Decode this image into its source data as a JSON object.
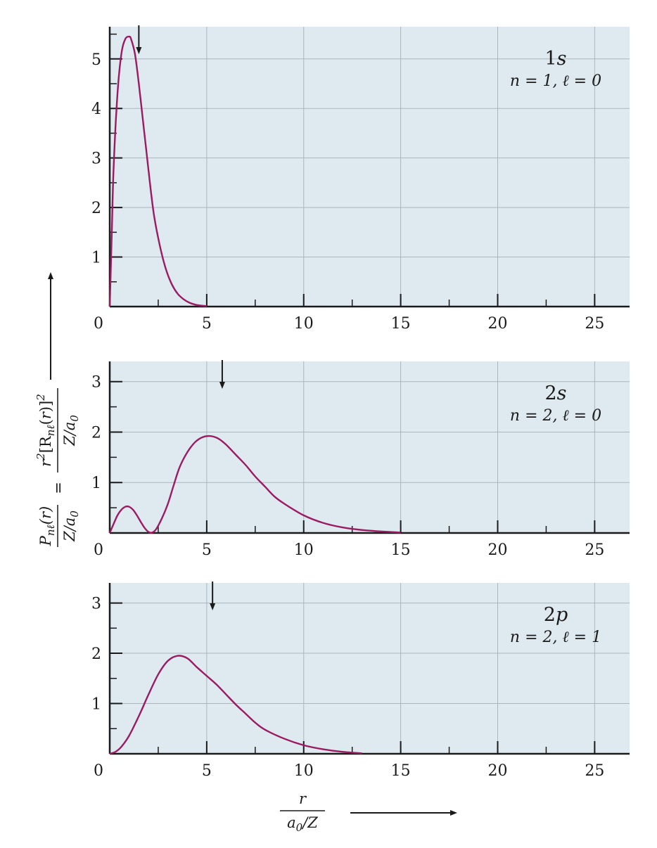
{
  "colors": {
    "plot_background": "#dfeaf0",
    "grid": "#aab6bc",
    "curve": "#9b1b63",
    "axis": "#1a1a1a"
  },
  "y_axis_label": {
    "lhs_numerator": "P_nℓ(r)",
    "lhs_denominator": "Z/a_0",
    "equals": "=",
    "rhs_numerator": "r²[R_nℓ(r)]²",
    "rhs_denominator": "Z/a_0"
  },
  "x_axis_label": {
    "numerator": "r",
    "denominator": "a_0/Z"
  },
  "chart_data": [
    {
      "type": "line",
      "orbital": "1s",
      "quantum_numbers": "n = 1, ℓ = 0",
      "xlim": [
        0,
        26.8
      ],
      "ylim": [
        0,
        5.65
      ],
      "x_ticks": [
        0,
        5,
        10,
        15,
        20,
        25
      ],
      "x_tick_labels": [
        "0",
        "5",
        "10",
        "15",
        "20",
        "25"
      ],
      "y_ticks": [
        1,
        2,
        3,
        4,
        5
      ],
      "y_tick_labels": [
        "1",
        "2",
        "3",
        "4",
        "5"
      ],
      "grid": true,
      "arrow_at_x": 1.5,
      "x": [
        0,
        0.1,
        0.2,
        0.4,
        0.6,
        0.8,
        1.0,
        1.1,
        1.3,
        1.5,
        1.7,
        1.9,
        2.1,
        2.3,
        2.6,
        2.9,
        3.2,
        3.5,
        3.8,
        4.1,
        4.4,
        4.7,
        5.0
      ],
      "y": [
        0,
        1.4,
        2.8,
        4.3,
        5.1,
        5.4,
        5.45,
        5.4,
        5.1,
        4.5,
        3.8,
        3.1,
        2.4,
        1.8,
        1.2,
        0.75,
        0.45,
        0.26,
        0.15,
        0.08,
        0.04,
        0.02,
        0.01
      ]
    },
    {
      "type": "line",
      "orbital": "2s",
      "quantum_numbers": "n = 2, ℓ = 0",
      "xlim": [
        0,
        26.8
      ],
      "ylim": [
        0,
        3.4
      ],
      "x_ticks": [
        0,
        5,
        10,
        15,
        20,
        25
      ],
      "x_tick_labels": [
        "0",
        "5",
        "10",
        "15",
        "20",
        "25"
      ],
      "y_ticks": [
        1,
        2,
        3
      ],
      "y_tick_labels": [
        "1",
        "2",
        "3"
      ],
      "grid": true,
      "arrow_at_x": 5.8,
      "x": [
        0,
        0.2,
        0.4,
        0.6,
        0.8,
        1.0,
        1.2,
        1.4,
        1.6,
        1.8,
        2.0,
        2.2,
        2.4,
        2.7,
        3.0,
        3.3,
        3.6,
        4.0,
        4.4,
        4.8,
        5.2,
        5.6,
        6.0,
        6.5,
        7.0,
        7.5,
        8.0,
        8.5,
        9.0,
        10.0,
        11.0,
        12.0,
        13.0,
        14.0,
        15.0
      ],
      "y": [
        0,
        0.18,
        0.35,
        0.46,
        0.52,
        0.52,
        0.46,
        0.35,
        0.22,
        0.1,
        0.02,
        0.01,
        0.08,
        0.3,
        0.58,
        0.95,
        1.3,
        1.6,
        1.8,
        1.9,
        1.92,
        1.87,
        1.75,
        1.55,
        1.35,
        1.12,
        0.92,
        0.72,
        0.58,
        0.35,
        0.2,
        0.11,
        0.06,
        0.03,
        0.01
      ]
    },
    {
      "type": "line",
      "orbital": "2p",
      "quantum_numbers": "n = 2, ℓ = 1",
      "xlim": [
        0,
        26.8
      ],
      "ylim": [
        0,
        3.4
      ],
      "x_ticks": [
        0,
        5,
        10,
        15,
        20,
        25
      ],
      "x_tick_labels": [
        "0",
        "5",
        "10",
        "15",
        "20",
        "25"
      ],
      "y_ticks": [
        1,
        2,
        3
      ],
      "y_tick_labels": [
        "1",
        "2",
        "3"
      ],
      "grid": true,
      "arrow_at_x": 5.3,
      "x": [
        0,
        0.3,
        0.6,
        1.0,
        1.5,
        2.0,
        2.5,
        3.0,
        3.5,
        4.0,
        4.5,
        5.0,
        5.5,
        6.0,
        6.5,
        7.0,
        7.5,
        8.0,
        9.0,
        10.0,
        11.0,
        12.0,
        13.0
      ],
      "y": [
        0,
        0.04,
        0.14,
        0.36,
        0.75,
        1.18,
        1.58,
        1.85,
        1.95,
        1.9,
        1.72,
        1.55,
        1.38,
        1.18,
        0.98,
        0.8,
        0.62,
        0.48,
        0.3,
        0.17,
        0.09,
        0.04,
        0.01
      ]
    }
  ]
}
